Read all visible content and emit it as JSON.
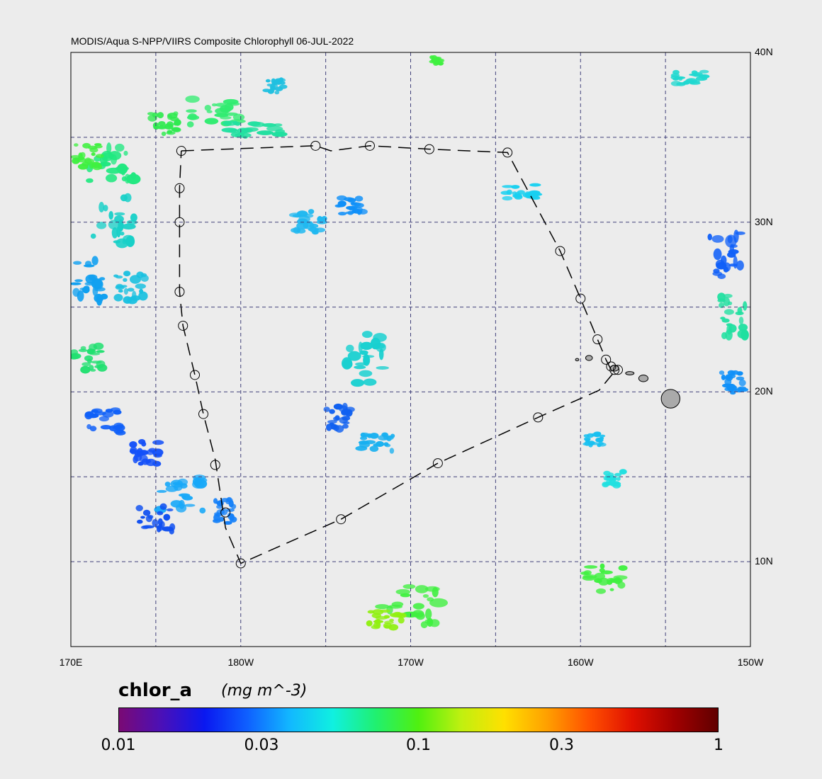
{
  "title": "MODIS/Aqua S-NPP/VIIRS Composite Chlorophyll 06-JUL-2022",
  "map": {
    "lon_range": [
      170,
      210
    ],
    "lat_range": [
      5,
      40
    ],
    "lat_labels": [
      {
        "lat": 40,
        "text": "40N"
      },
      {
        "lat": 30,
        "text": "30N"
      },
      {
        "lat": 20,
        "text": "20N"
      },
      {
        "lat": 10,
        "text": "10N"
      }
    ],
    "lon_labels": [
      {
        "lon": 170,
        "text": "170E"
      },
      {
        "lon": 180,
        "text": "180W"
      },
      {
        "lon": 190,
        "text": "170W"
      },
      {
        "lon": 200,
        "text": "160W"
      },
      {
        "lon": 210,
        "text": "150W"
      }
    ],
    "grid_lons": [
      175,
      180,
      185,
      190,
      195,
      200,
      205
    ],
    "grid_lats": [
      10,
      15,
      20,
      25,
      30,
      35
    ],
    "grid_color": "#40407a",
    "land_color": "#aaaaaa"
  },
  "track": {
    "color": "#000000",
    "points": [
      [
        176.5,
        34.2
      ],
      [
        184.4,
        34.5
      ],
      [
        185.3,
        34.2
      ],
      [
        187.6,
        34.5
      ],
      [
        191.1,
        34.3
      ],
      [
        195.7,
        34.1
      ],
      [
        198.8,
        28.3
      ],
      [
        200.0,
        25.5
      ],
      [
        201.0,
        23.1
      ],
      [
        201.5,
        21.9
      ],
      [
        201.8,
        21.3
      ],
      [
        202.0,
        21.2
      ],
      [
        201.1,
        20.1
      ],
      [
        197.5,
        18.5
      ],
      [
        191.6,
        15.8
      ],
      [
        185.9,
        12.5
      ],
      [
        180.0,
        9.9
      ],
      [
        179.1,
        12.0
      ],
      [
        178.5,
        16.0
      ],
      [
        177.8,
        18.7
      ],
      [
        177.3,
        21.0
      ],
      [
        176.6,
        23.9
      ],
      [
        176.4,
        25.9
      ],
      [
        176.4,
        30.0
      ],
      [
        176.4,
        32.0
      ],
      [
        176.5,
        34.2
      ]
    ],
    "stations": [
      [
        176.5,
        34.2
      ],
      [
        184.4,
        34.5
      ],
      [
        187.6,
        34.5
      ],
      [
        191.1,
        34.3
      ],
      [
        195.7,
        34.1
      ],
      [
        198.8,
        28.3
      ],
      [
        200.0,
        25.5
      ],
      [
        201.0,
        23.1
      ],
      [
        201.5,
        21.9
      ],
      [
        201.8,
        21.5
      ],
      [
        202.0,
        21.3
      ],
      [
        202.2,
        21.3
      ],
      [
        197.5,
        18.5
      ],
      [
        191.6,
        15.8
      ],
      [
        185.9,
        12.5
      ],
      [
        180.0,
        9.9
      ],
      [
        179.1,
        12.9
      ],
      [
        178.5,
        15.7
      ],
      [
        177.8,
        18.7
      ],
      [
        177.3,
        21.0
      ],
      [
        176.6,
        23.9
      ],
      [
        176.4,
        25.9
      ],
      [
        176.4,
        30.0
      ],
      [
        176.4,
        32.0
      ]
    ]
  },
  "colorbar": {
    "variable": "chlor_a",
    "units": "(mg m^-3)",
    "gradient": [
      "#7a0a74",
      "#4a10b8",
      "#0a18f0",
      "#0f60ff",
      "#12b8ff",
      "#10f0e0",
      "#20f070",
      "#50f010",
      "#c0f010",
      "#ffe000",
      "#ffa000",
      "#ff5000",
      "#e01000",
      "#a00000",
      "#600000"
    ],
    "ticks": [
      {
        "label": "0.01",
        "frac": 0.0
      },
      {
        "label": "0.03",
        "frac": 0.2385
      },
      {
        "label": "0.1",
        "frac": 0.5
      },
      {
        "label": "0.3",
        "frac": 0.7385
      },
      {
        "label": "1",
        "frac": 1.0
      }
    ]
  },
  "chlorophyll_patches": [
    {
      "lon": 172.5,
      "lat": 33.5,
      "w": 2.8,
      "h": 2.5,
      "color": "#20e880"
    },
    {
      "lon": 171.0,
      "lat": 34.0,
      "w": 1.5,
      "h": 1.5,
      "color": "#40f040"
    },
    {
      "lon": 175.5,
      "lat": 35.8,
      "w": 1.6,
      "h": 1.2,
      "color": "#30ea50"
    },
    {
      "lon": 178.5,
      "lat": 36.5,
      "w": 3.0,
      "h": 1.5,
      "color": "#30ec70"
    },
    {
      "lon": 181.0,
      "lat": 35.5,
      "w": 3.5,
      "h": 1.0,
      "color": "#20e0a0"
    },
    {
      "lon": 172.5,
      "lat": 30.2,
      "w": 2.5,
      "h": 3.0,
      "color": "#18d0c8"
    },
    {
      "lon": 171.2,
      "lat": 26.5,
      "w": 2.0,
      "h": 2.5,
      "color": "#10a0f0"
    },
    {
      "lon": 173.5,
      "lat": 26.0,
      "w": 1.8,
      "h": 2.0,
      "color": "#18c0e0"
    },
    {
      "lon": 171.0,
      "lat": 22.0,
      "w": 1.8,
      "h": 1.5,
      "color": "#20e070"
    },
    {
      "lon": 172.0,
      "lat": 18.2,
      "w": 2.0,
      "h": 1.5,
      "color": "#1060f8"
    },
    {
      "lon": 174.5,
      "lat": 16.5,
      "w": 1.8,
      "h": 1.5,
      "color": "#1450f8"
    },
    {
      "lon": 176.5,
      "lat": 14.0,
      "w": 2.5,
      "h": 2.0,
      "color": "#18a8f8"
    },
    {
      "lon": 175.0,
      "lat": 12.5,
      "w": 2.0,
      "h": 1.5,
      "color": "#1050f0"
    },
    {
      "lon": 179.0,
      "lat": 13.0,
      "w": 1.2,
      "h": 1.5,
      "color": "#1480f8"
    },
    {
      "lon": 184.0,
      "lat": 30.0,
      "w": 2.0,
      "h": 1.5,
      "color": "#20b8f0"
    },
    {
      "lon": 186.5,
      "lat": 31.0,
      "w": 1.5,
      "h": 1.0,
      "color": "#1090f8"
    },
    {
      "lon": 187.5,
      "lat": 22.0,
      "w": 2.5,
      "h": 3.0,
      "color": "#18d0d0"
    },
    {
      "lon": 185.8,
      "lat": 18.5,
      "w": 1.5,
      "h": 1.5,
      "color": "#1060f0"
    },
    {
      "lon": 188.0,
      "lat": 17.0,
      "w": 2.0,
      "h": 1.0,
      "color": "#18b0f0"
    },
    {
      "lon": 190.0,
      "lat": 7.5,
      "w": 3.5,
      "h": 2.5,
      "color": "#40f040"
    },
    {
      "lon": 188.5,
      "lat": 6.5,
      "w": 2.0,
      "h": 1.2,
      "color": "#90f010"
    },
    {
      "lon": 196.5,
      "lat": 31.8,
      "w": 2.0,
      "h": 0.8,
      "color": "#18d0f0"
    },
    {
      "lon": 201.5,
      "lat": 9.0,
      "w": 2.5,
      "h": 1.5,
      "color": "#40f040"
    },
    {
      "lon": 202.0,
      "lat": 14.8,
      "w": 1.2,
      "h": 1.0,
      "color": "#20e0e0"
    },
    {
      "lon": 200.8,
      "lat": 17.2,
      "w": 1.0,
      "h": 0.7,
      "color": "#18c0f0"
    },
    {
      "lon": 208.5,
      "lat": 28.0,
      "w": 2.0,
      "h": 3.0,
      "color": "#1060f8"
    },
    {
      "lon": 209.0,
      "lat": 24.5,
      "w": 1.5,
      "h": 2.5,
      "color": "#20e0a0"
    },
    {
      "lon": 209.0,
      "lat": 20.5,
      "w": 1.5,
      "h": 1.5,
      "color": "#1090f8"
    },
    {
      "lon": 206.5,
      "lat": 38.5,
      "w": 2.0,
      "h": 0.8,
      "color": "#20d8d0"
    },
    {
      "lon": 182.0,
      "lat": 38.0,
      "w": 1.0,
      "h": 0.8,
      "color": "#20c0e0"
    },
    {
      "lon": 191.5,
      "lat": 39.5,
      "w": 0.7,
      "h": 0.5,
      "color": "#40f040"
    }
  ],
  "islands": [
    {
      "lon": 205.3,
      "lat": 19.6,
      "w": 1.1,
      "h": 1.1
    },
    {
      "lon": 203.7,
      "lat": 20.8,
      "w": 0.55,
      "h": 0.4
    },
    {
      "lon": 202.9,
      "lat": 21.1,
      "w": 0.5,
      "h": 0.2
    },
    {
      "lon": 202.0,
      "lat": 21.4,
      "w": 0.5,
      "h": 0.35
    },
    {
      "lon": 200.5,
      "lat": 22.0,
      "w": 0.4,
      "h": 0.3
    },
    {
      "lon": 199.8,
      "lat": 21.9,
      "w": 0.2,
      "h": 0.15
    }
  ]
}
